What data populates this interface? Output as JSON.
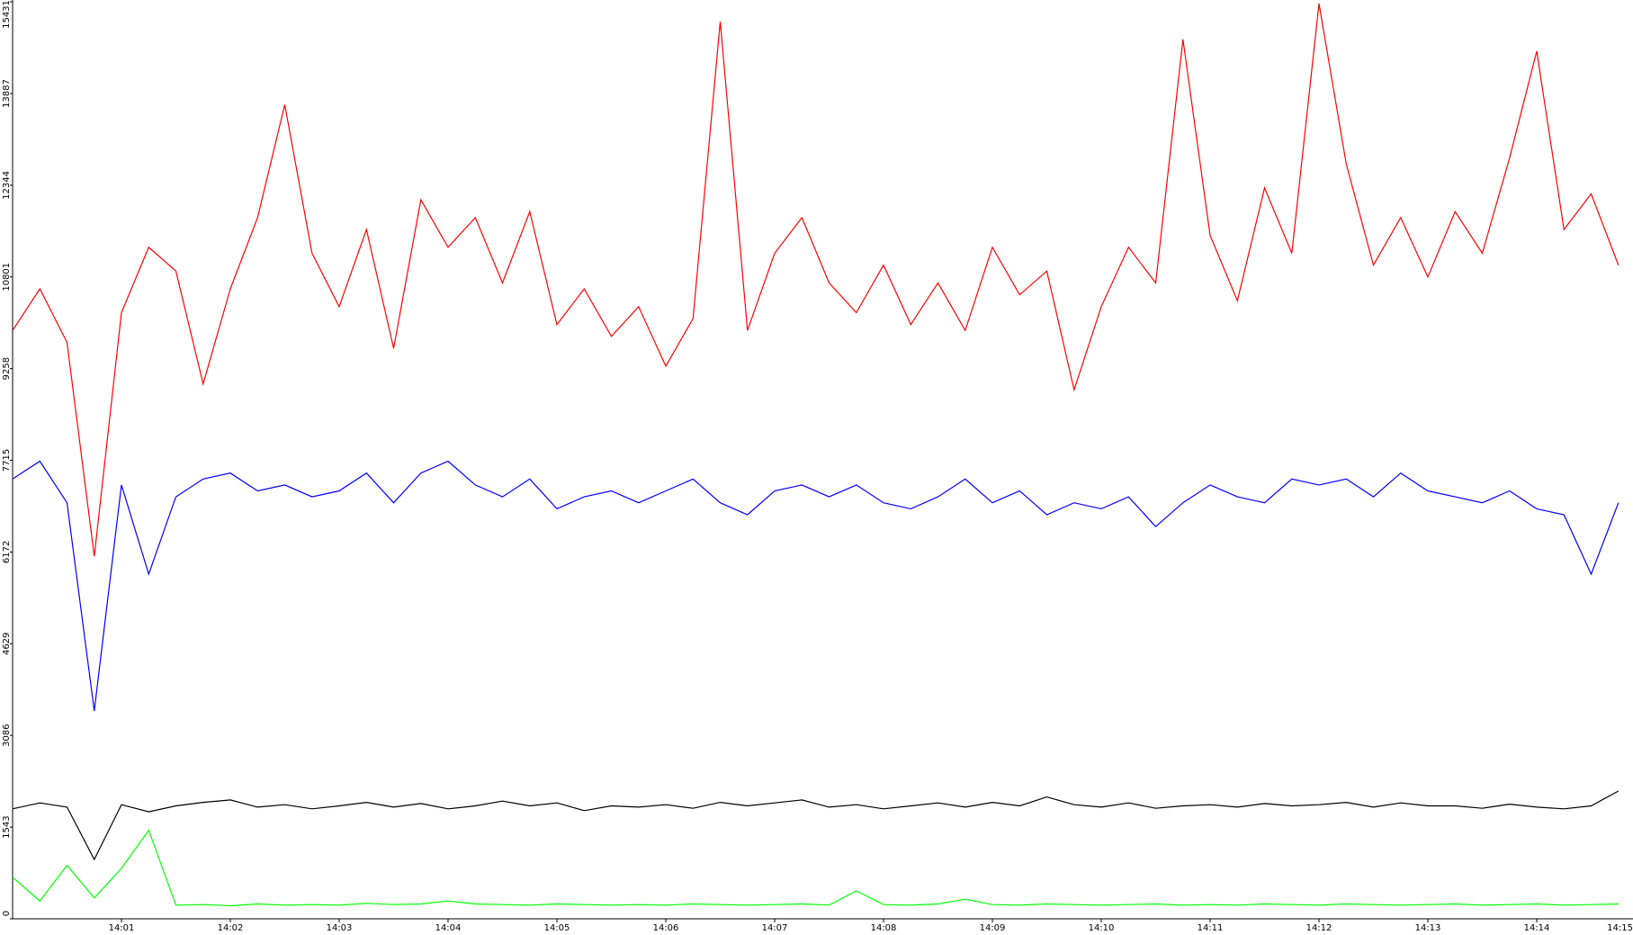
{
  "chart_data": {
    "type": "line",
    "x": [
      0,
      0.25,
      0.5,
      0.75,
      1,
      1.25,
      1.5,
      1.75,
      2,
      2.25,
      2.5,
      2.75,
      3,
      3.25,
      3.5,
      3.75,
      4,
      4.25,
      4.5,
      4.75,
      5,
      5.25,
      5.5,
      5.75,
      6,
      6.25,
      6.5,
      6.75,
      7,
      7.25,
      7.5,
      7.75,
      8,
      8.25,
      8.5,
      8.75,
      9,
      9.25,
      9.5,
      9.75,
      10,
      10.25,
      10.5,
      10.75,
      11,
      11.25,
      11.5,
      11.75,
      12,
      12.25,
      12.5,
      12.75,
      13,
      13.25,
      13.5,
      13.75,
      14,
      14.25,
      14.5,
      14.75
    ],
    "xlim": [
      0,
      15
    ],
    "xticks": [
      {
        "value": 1,
        "label": "14:01"
      },
      {
        "value": 2,
        "label": "14:02"
      },
      {
        "value": 3,
        "label": "14:03"
      },
      {
        "value": 4,
        "label": "14:04"
      },
      {
        "value": 5,
        "label": "14:05"
      },
      {
        "value": 6,
        "label": "14:06"
      },
      {
        "value": 7,
        "label": "14:07"
      },
      {
        "value": 8,
        "label": "14:08"
      },
      {
        "value": 9,
        "label": "14:09"
      },
      {
        "value": 10,
        "label": "14:10"
      },
      {
        "value": 11,
        "label": "14:11"
      },
      {
        "value": 12,
        "label": "14:12"
      },
      {
        "value": 13,
        "label": "14:13"
      },
      {
        "value": 14,
        "label": "14:14"
      },
      {
        "value": 15,
        "label": "14:15"
      }
    ],
    "ylim": [
      0,
      15431
    ],
    "yticks": [
      0,
      1543,
      3086,
      4629,
      6172,
      7715,
      9258,
      10801,
      12344,
      13887,
      15431
    ],
    "series": [
      {
        "color": "#ff0000",
        "values": [
          9900,
          10600,
          9700,
          6100,
          10200,
          11300,
          10900,
          9000,
          10600,
          11800,
          13700,
          11200,
          10300,
          11600,
          9600,
          12100,
          11300,
          11800,
          10700,
          11900,
          10000,
          10600,
          9800,
          10300,
          9300,
          10100,
          15100,
          9900,
          11200,
          11800,
          10700,
          10200,
          11000,
          10000,
          10700,
          9900,
          11300,
          10500,
          10900,
          8900,
          10300,
          11300,
          10700,
          14800,
          11500,
          10400,
          12300,
          11200,
          15400,
          12700,
          11000,
          11800,
          10800,
          11900,
          11200,
          12800,
          14600,
          11600,
          12200,
          11000
        ]
      },
      {
        "color": "#0000ff",
        "values": [
          7400,
          7700,
          7000,
          3500,
          7300,
          5800,
          7100,
          7400,
          7500,
          7200,
          7300,
          7100,
          7200,
          7500,
          7000,
          7500,
          7700,
          7300,
          7100,
          7400,
          6900,
          7100,
          7200,
          7000,
          7200,
          7400,
          7000,
          6800,
          7200,
          7300,
          7100,
          7300,
          7000,
          6900,
          7100,
          7400,
          7000,
          7200,
          6800,
          7000,
          6900,
          7100,
          6600,
          7000,
          7300,
          7100,
          7000,
          7400,
          7300,
          7400,
          7100,
          7500,
          7200,
          7100,
          7000,
          7200,
          6900,
          6800,
          5800,
          7000
        ]
      },
      {
        "color": "#000000",
        "values": [
          1850,
          1950,
          1880,
          1000,
          1920,
          1800,
          1900,
          1960,
          2000,
          1880,
          1920,
          1850,
          1900,
          1960,
          1880,
          1940,
          1850,
          1900,
          1980,
          1900,
          1950,
          1820,
          1900,
          1880,
          1920,
          1860,
          1960,
          1900,
          1950,
          2000,
          1880,
          1920,
          1850,
          1900,
          1950,
          1880,
          1960,
          1900,
          2050,
          1920,
          1880,
          1950,
          1860,
          1900,
          1920,
          1880,
          1940,
          1900,
          1920,
          1960,
          1880,
          1950,
          1900,
          1900,
          1860,
          1930,
          1880,
          1850,
          1900,
          2150
        ]
      },
      {
        "color": "#00ff00",
        "values": [
          700,
          300,
          900,
          350,
          850,
          1490,
          230,
          240,
          220,
          250,
          230,
          240,
          230,
          260,
          240,
          250,
          300,
          250,
          240,
          230,
          250,
          240,
          230,
          240,
          230,
          250,
          240,
          230,
          240,
          250,
          230,
          470,
          240,
          230,
          250,
          330,
          240,
          230,
          250,
          240,
          230,
          240,
          250,
          230,
          240,
          230,
          250,
          240,
          230,
          250,
          240,
          230,
          240,
          250,
          230,
          240,
          250,
          230,
          240,
          250
        ]
      }
    ]
  }
}
